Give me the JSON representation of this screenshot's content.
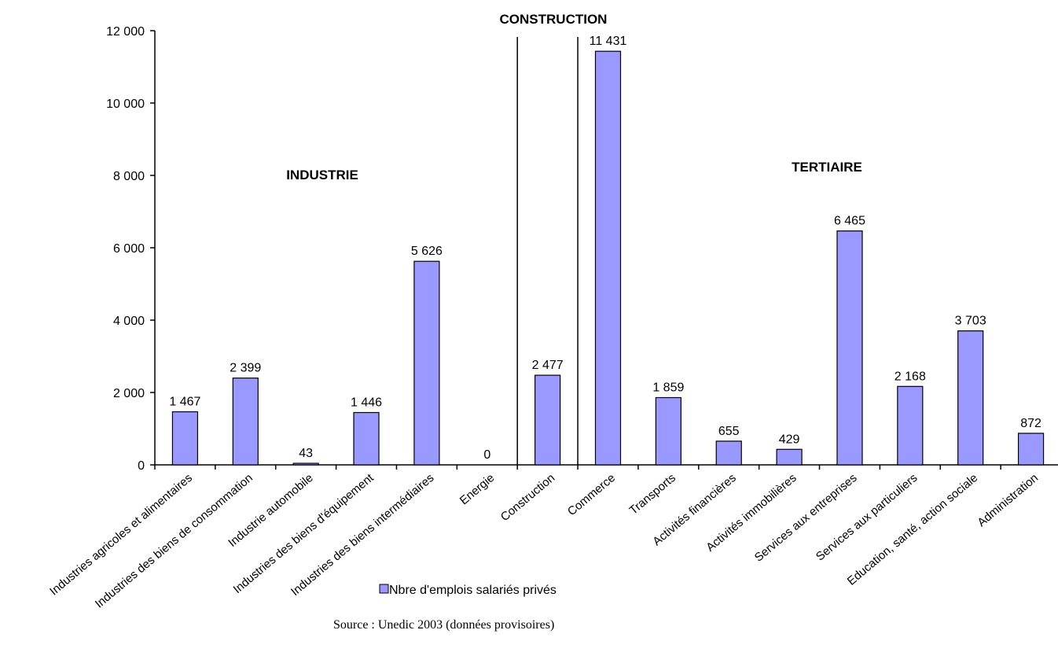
{
  "chart_data": {
    "type": "bar",
    "categories": [
      "Industries agricoles et alimentaires",
      "Industries des biens de consommation",
      "Industrie automobile",
      "Industries des biens d'équipement",
      "Industries des biens intermédiaires",
      "Energie",
      "Construction",
      "Commerce",
      "Transports",
      "Activités financières",
      "Activités immobilières",
      "Services aux entreprises",
      "Services aux particuliers",
      "Education, santé, action sociale",
      "Administration"
    ],
    "series": [
      {
        "name": "Nbre d'emplois salariés privés",
        "values": [
          1467,
          2399,
          43,
          1446,
          5626,
          0,
          2477,
          11431,
          1859,
          655,
          429,
          6465,
          2168,
          3703,
          872
        ],
        "labels": [
          "1 467",
          "2 399",
          "43",
          "1 446",
          "5 626",
          "0",
          "2 477",
          "11 431",
          "1 859",
          "655",
          "429",
          "6 465",
          "2 168",
          "3 703",
          "872"
        ],
        "color": "#9999ff"
      }
    ],
    "ylim": [
      0,
      12000
    ],
    "yticks": [
      0,
      2000,
      4000,
      6000,
      8000,
      10000,
      12000
    ],
    "ytick_labels": [
      "0",
      "2 000",
      "4 000",
      "6 000",
      "8 000",
      "10 000",
      "12 000"
    ],
    "grid": false,
    "legend_position": "bottom",
    "sectors": [
      {
        "label": "INDUSTRIE",
        "start_index": 0,
        "end_index": 5
      },
      {
        "label": "CONSTRUCTION",
        "start_index": 6,
        "end_index": 6
      },
      {
        "label": "TERTIAIRE",
        "start_index": 7,
        "end_index": 14
      }
    ],
    "source": "Source : Unedic 2003 (données provisoires)"
  }
}
